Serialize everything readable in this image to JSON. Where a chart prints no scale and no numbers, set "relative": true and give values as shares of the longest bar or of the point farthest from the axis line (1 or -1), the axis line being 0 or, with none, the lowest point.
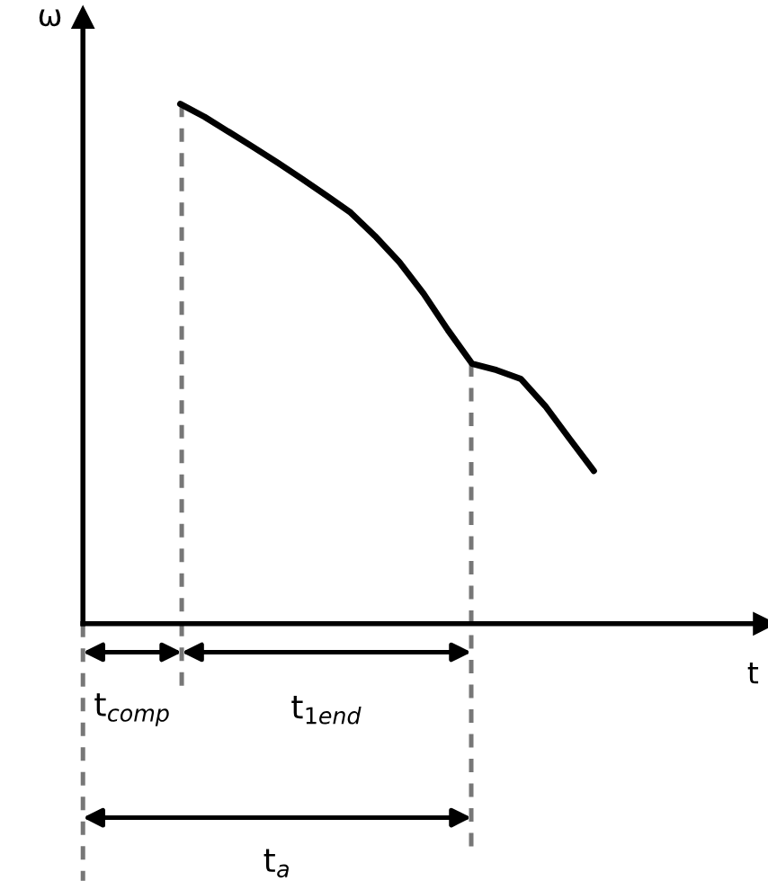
{
  "chart_data": {
    "type": "line",
    "relative": true,
    "xlabel": "t",
    "ylabel": "ω",
    "categories": [
      null,
      null,
      null,
      null,
      null,
      null,
      null,
      null,
      null,
      null,
      null,
      null,
      null,
      null,
      null,
      null,
      null,
      null,
      null,
      null,
      null,
      null,
      null,
      null,
      null,
      null,
      null,
      null,
      null
    ],
    "series": [
      {
        "color": "#000000",
        "values": [
          null,
          null,
          null,
          null,
          1.0,
          0.975,
          0.946,
          0.917,
          0.887,
          0.856,
          0.824,
          0.791,
          0.746,
          0.696,
          0.635,
          0.565,
          0.5,
          0.488,
          0.471,
          0.419,
          0.356,
          0.294,
          null,
          null,
          null,
          null,
          null,
          null,
          null
        ]
      }
    ],
    "annotations": [
      "t$_{comp}$",
      "t$_{1end}$",
      "t$_{a}$"
    ],
    "marker": "none",
    "line_style": "solid"
  }
}
